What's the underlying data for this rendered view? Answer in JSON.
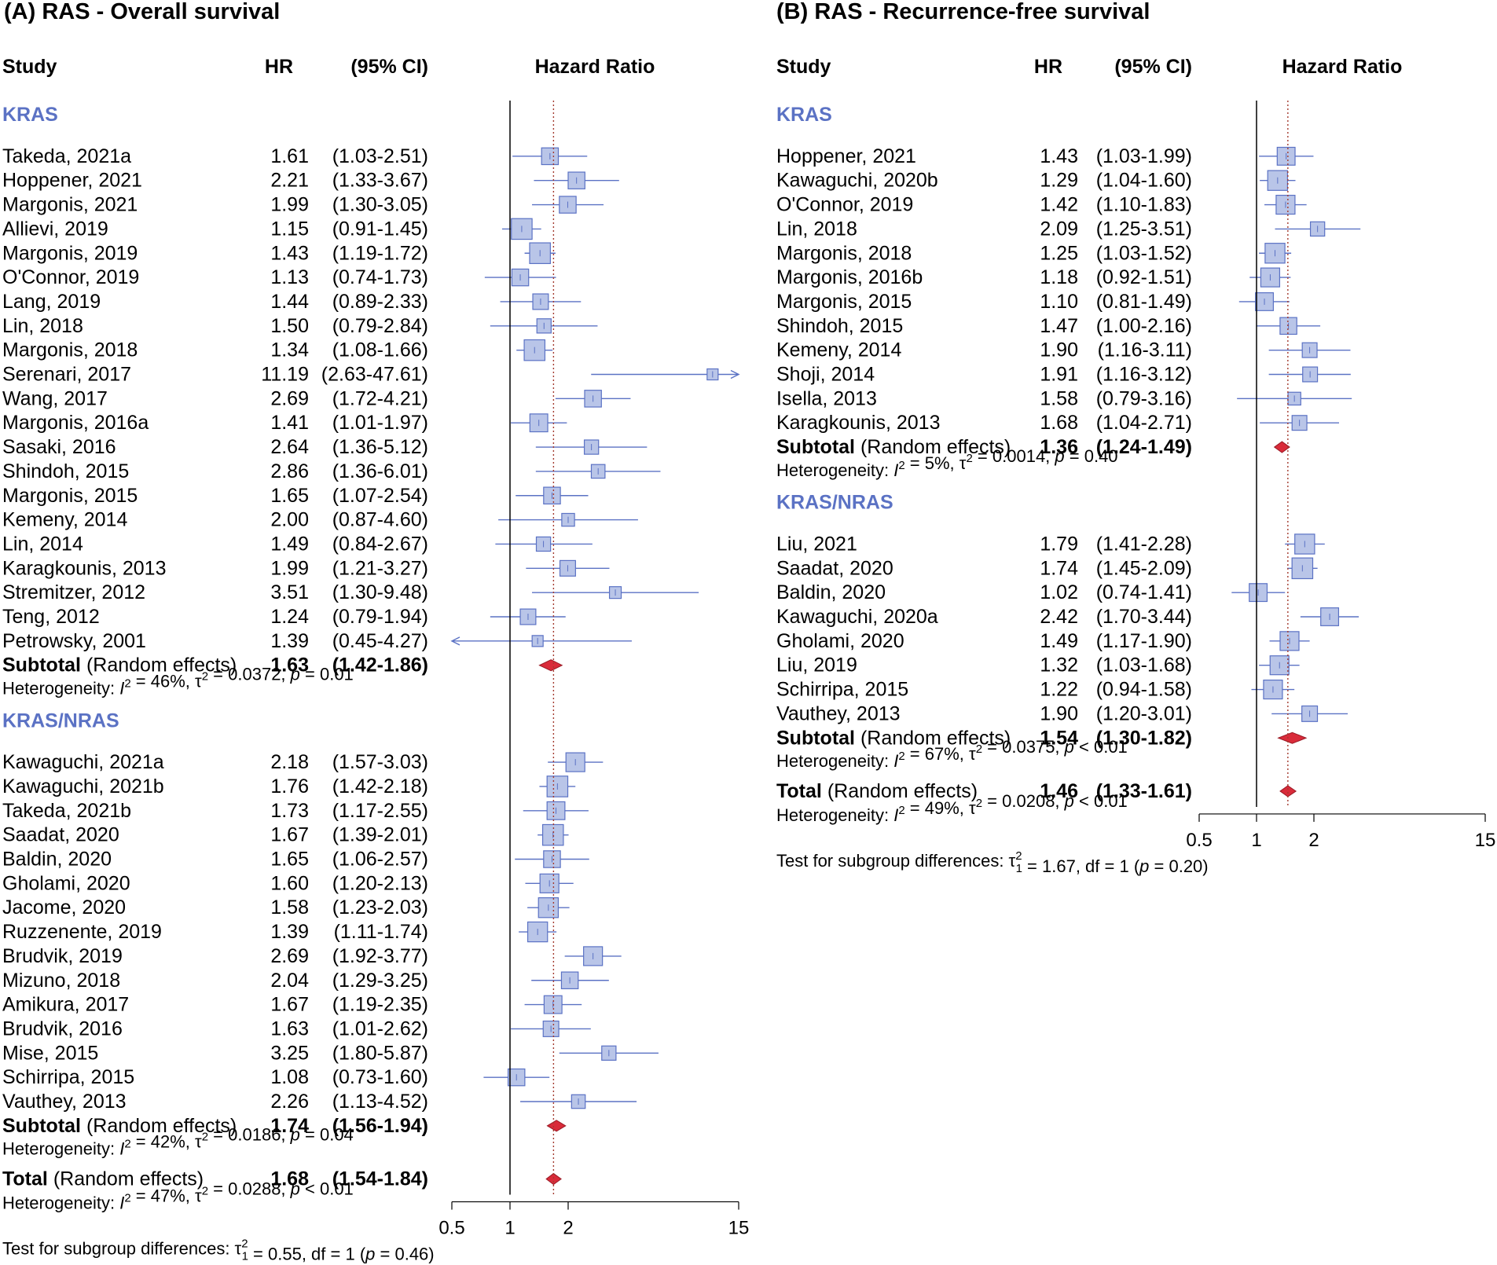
{
  "chart_data": [
    {
      "type": "forest",
      "title": "(A) RAS - Overall survival",
      "columns": {
        "study": "Study",
        "hr": "HR",
        "ci": "(95% CI)",
        "plot": "Hazard Ratio"
      },
      "x_scale": "log",
      "xlim": [
        0.5,
        15
      ],
      "ticks": [
        "0.5",
        "1",
        "2",
        "15"
      ],
      "tick_values": [
        0.5,
        1,
        2,
        15
      ],
      "pooled_line_value": 1.68,
      "groups": [
        {
          "name": "KRAS",
          "studies": [
            {
              "study": "Takeda, 2021a",
              "hr": "1.61",
              "ci": "(1.03-2.51)",
              "hr_value": 1.61,
              "lo": 1.03,
              "hi": 2.51,
              "weight": 3
            },
            {
              "study": "Hoppener, 2021",
              "hr": "2.21",
              "ci": "(1.33-3.67)",
              "hr_value": 2.21,
              "lo": 1.33,
              "hi": 3.67,
              "weight": 3
            },
            {
              "study": "Margonis, 2021",
              "hr": "1.99",
              "ci": "(1.30-3.05)",
              "hr_value": 1.99,
              "lo": 1.3,
              "hi": 3.05,
              "weight": 3
            },
            {
              "study": "Allievi, 2019",
              "hr": "1.15",
              "ci": "(0.91-1.45)",
              "hr_value": 1.15,
              "lo": 0.91,
              "hi": 1.45,
              "weight": 5
            },
            {
              "study": "Margonis, 2019",
              "hr": "1.43",
              "ci": "(1.19-1.72)",
              "hr_value": 1.43,
              "lo": 1.19,
              "hi": 1.72,
              "weight": 5
            },
            {
              "study": "O'Connor, 2019",
              "hr": "1.13",
              "ci": "(0.74-1.73)",
              "hr_value": 1.13,
              "lo": 0.74,
              "hi": 1.73,
              "weight": 3
            },
            {
              "study": "Lang, 2019",
              "hr": "1.44",
              "ci": "(0.89-2.33)",
              "hr_value": 1.44,
              "lo": 0.89,
              "hi": 2.33,
              "weight": 2.5
            },
            {
              "study": "Lin, 2018",
              "hr": "1.50",
              "ci": "(0.79-2.84)",
              "hr_value": 1.5,
              "lo": 0.79,
              "hi": 2.84,
              "weight": 2
            },
            {
              "study": "Margonis, 2018",
              "hr": "1.34",
              "ci": "(1.08-1.66)",
              "hr_value": 1.34,
              "lo": 1.08,
              "hi": 1.66,
              "weight": 5
            },
            {
              "study": "Serenari, 2017",
              "hr": "11.19",
              "ci": "(2.63-47.61)",
              "hr_value": 11.19,
              "lo": 2.63,
              "hi": 47.61,
              "weight": 1
            },
            {
              "study": "Wang, 2017",
              "hr": "2.69",
              "ci": "(1.72-4.21)",
              "hr_value": 2.69,
              "lo": 1.72,
              "hi": 4.21,
              "weight": 3
            },
            {
              "study": "Margonis, 2016a",
              "hr": "1.41",
              "ci": "(1.01-1.97)",
              "hr_value": 1.41,
              "lo": 1.01,
              "hi": 1.97,
              "weight": 3.5
            },
            {
              "study": "Sasaki, 2016",
              "hr": "2.64",
              "ci": "(1.36-5.12)",
              "hr_value": 2.64,
              "lo": 1.36,
              "hi": 5.12,
              "weight": 2
            },
            {
              "study": "Shindoh, 2015",
              "hr": "2.86",
              "ci": "(1.36-6.01)",
              "hr_value": 2.86,
              "lo": 1.36,
              "hi": 6.01,
              "weight": 1.8
            },
            {
              "study": "Margonis, 2015",
              "hr": "1.65",
              "ci": "(1.07-2.54)",
              "hr_value": 1.65,
              "lo": 1.07,
              "hi": 2.54,
              "weight": 3
            },
            {
              "study": "Kemeny, 2014",
              "hr": "2.00",
              "ci": "(0.87-4.60)",
              "hr_value": 2.0,
              "lo": 0.87,
              "hi": 4.6,
              "weight": 1.5
            },
            {
              "study": "Lin, 2014",
              "hr": "1.49",
              "ci": "(0.84-2.67)",
              "hr_value": 1.49,
              "lo": 0.84,
              "hi": 2.67,
              "weight": 2
            },
            {
              "study": "Karagkounis, 2013",
              "hr": "1.99",
              "ci": "(1.21-3.27)",
              "hr_value": 1.99,
              "lo": 1.21,
              "hi": 3.27,
              "weight": 2.5
            },
            {
              "study": "Stremitzer, 2012",
              "hr": "3.51",
              "ci": "(1.30-9.48)",
              "hr_value": 3.51,
              "lo": 1.3,
              "hi": 9.48,
              "weight": 1.2
            },
            {
              "study": "Teng, 2012",
              "hr": "1.24",
              "ci": "(0.79-1.94)",
              "hr_value": 1.24,
              "lo": 0.79,
              "hi": 1.94,
              "weight": 2.5
            },
            {
              "study": "Petrowsky, 2001",
              "hr": "1.39",
              "ci": "(0.45-4.27)",
              "hr_value": 1.39,
              "lo": 0.45,
              "hi": 4.27,
              "weight": 1
            }
          ],
          "subtotal": {
            "label": "Subtotal",
            "model": "(Random effects)",
            "hr": "1.63",
            "ci": "(1.42-1.86)",
            "hr_value": 1.63,
            "lo": 1.42,
            "hi": 1.86
          },
          "heterogeneity": {
            "prefix": "Heterogeneity: ",
            "i2": "I",
            "eq1": " = 46%, ",
            "tau": "τ",
            "eq2": " = 0.0372, ",
            "p": "p",
            "eq3": " = 0.01"
          }
        },
        {
          "name": "KRAS/NRAS",
          "studies": [
            {
              "study": "Kawaguchi, 2021a",
              "hr": "2.18",
              "ci": "(1.57-3.03)",
              "hr_value": 2.18,
              "lo": 1.57,
              "hi": 3.03,
              "weight": 4
            },
            {
              "study": "Kawaguchi, 2021b",
              "hr": "1.76",
              "ci": "(1.42-2.18)",
              "hr_value": 1.76,
              "lo": 1.42,
              "hi": 2.18,
              "weight": 5
            },
            {
              "study": "Takeda, 2021b",
              "hr": "1.73",
              "ci": "(1.17-2.55)",
              "hr_value": 1.73,
              "lo": 1.17,
              "hi": 2.55,
              "weight": 3.5
            },
            {
              "study": "Saadat, 2020",
              "hr": "1.67",
              "ci": "(1.39-2.01)",
              "hr_value": 1.67,
              "lo": 1.39,
              "hi": 2.01,
              "weight": 5
            },
            {
              "study": "Baldin, 2020",
              "hr": "1.65",
              "ci": "(1.06-2.57)",
              "hr_value": 1.65,
              "lo": 1.06,
              "hi": 2.57,
              "weight": 3
            },
            {
              "study": "Gholami, 2020",
              "hr": "1.60",
              "ci": "(1.20-2.13)",
              "hr_value": 1.6,
              "lo": 1.2,
              "hi": 2.13,
              "weight": 4
            },
            {
              "study": "Jacome, 2020",
              "hr": "1.58",
              "ci": "(1.23-2.03)",
              "hr_value": 1.58,
              "lo": 1.23,
              "hi": 2.03,
              "weight": 4.5
            },
            {
              "study": "Ruzzenente, 2019",
              "hr": "1.39",
              "ci": "(1.11-1.74)",
              "hr_value": 1.39,
              "lo": 1.11,
              "hi": 1.74,
              "weight": 4.5
            },
            {
              "study": "Brudvik, 2019",
              "hr": "2.69",
              "ci": "(1.92-3.77)",
              "hr_value": 2.69,
              "lo": 1.92,
              "hi": 3.77,
              "weight": 4
            },
            {
              "study": "Mizuno, 2018",
              "hr": "2.04",
              "ci": "(1.29-3.25)",
              "hr_value": 2.04,
              "lo": 1.29,
              "hi": 3.25,
              "weight": 3
            },
            {
              "study": "Amikura, 2017",
              "hr": "1.67",
              "ci": "(1.19-2.35)",
              "hr_value": 1.67,
              "lo": 1.19,
              "hi": 2.35,
              "weight": 3.5
            },
            {
              "study": "Brudvik, 2016",
              "hr": "1.63",
              "ci": "(1.01-2.62)",
              "hr_value": 1.63,
              "lo": 1.01,
              "hi": 2.62,
              "weight": 2.5
            },
            {
              "study": "Mise, 2015",
              "hr": "3.25",
              "ci": "(1.80-5.87)",
              "hr_value": 3.25,
              "lo": 1.8,
              "hi": 5.87,
              "weight": 2
            },
            {
              "study": "Schirripa, 2015",
              "hr": "1.08",
              "ci": "(0.73-1.60)",
              "hr_value": 1.08,
              "lo": 0.73,
              "hi": 1.6,
              "weight": 3
            },
            {
              "study": "Vauthey, 2013",
              "hr": "2.26",
              "ci": "(1.13-4.52)",
              "hr_value": 2.26,
              "lo": 1.13,
              "hi": 4.52,
              "weight": 1.8
            }
          ],
          "subtotal": {
            "label": "Subtotal",
            "model": "(Random effects)",
            "hr": "1.74",
            "ci": "(1.56-1.94)",
            "hr_value": 1.74,
            "lo": 1.56,
            "hi": 1.94
          },
          "heterogeneity": {
            "prefix": "Heterogeneity: ",
            "i2": "I",
            "eq1": " = 42%, ",
            "tau": "τ",
            "eq2": " = 0.0186, ",
            "p": "p",
            "eq3": " = 0.04"
          }
        }
      ],
      "total": {
        "label": "Total",
        "model": "(Random effects)",
        "hr": "1.68",
        "ci": "(1.54-1.84)",
        "hr_value": 1.68,
        "lo": 1.54,
        "hi": 1.84
      },
      "total_heterogeneity": {
        "prefix": "Heterogeneity: ",
        "i2": "I",
        "eq1": " = 47%, ",
        "tau": "τ",
        "eq2": " = 0.0288, ",
        "p": "p",
        "eq3": " < 0.01"
      },
      "subgroup_test": {
        "prefix": "Test for subgroup differences: ",
        "tau": "τ",
        "eq1": " = 0.55, df = 1 (",
        "p": "p",
        "eq2": " = 0.46)"
      }
    },
    {
      "type": "forest",
      "title": "(B) RAS - Recurrence-free survival",
      "columns": {
        "study": "Study",
        "hr": "HR",
        "ci": "(95% CI)",
        "plot": "Hazard Ratio"
      },
      "x_scale": "log",
      "xlim": [
        0.5,
        15
      ],
      "ticks": [
        "0.5",
        "1",
        "2",
        "15"
      ],
      "tick_values": [
        0.5,
        1,
        2,
        15
      ],
      "pooled_line_value": 1.46,
      "groups": [
        {
          "name": "KRAS",
          "studies": [
            {
              "study": "Hoppener, 2021",
              "hr": "1.43",
              "ci": "(1.03-1.99)",
              "hr_value": 1.43,
              "lo": 1.03,
              "hi": 1.99,
              "weight": 3.5
            },
            {
              "study": "Kawaguchi, 2020b",
              "hr": "1.29",
              "ci": "(1.04-1.60)",
              "hr_value": 1.29,
              "lo": 1.04,
              "hi": 1.6,
              "weight": 4.5
            },
            {
              "study": "O'Connor, 2019",
              "hr": "1.42",
              "ci": "(1.10-1.83)",
              "hr_value": 1.42,
              "lo": 1.1,
              "hi": 1.83,
              "weight": 4
            },
            {
              "study": "Lin, 2018",
              "hr": "2.09",
              "ci": "(1.25-3.51)",
              "hr_value": 2.09,
              "lo": 1.25,
              "hi": 3.51,
              "weight": 2
            },
            {
              "study": "Margonis, 2018",
              "hr": "1.25",
              "ci": "(1.03-1.52)",
              "hr_value": 1.25,
              "lo": 1.03,
              "hi": 1.52,
              "weight": 4.5
            },
            {
              "study": "Margonis, 2016b",
              "hr": "1.18",
              "ci": "(0.92-1.51)",
              "hr_value": 1.18,
              "lo": 0.92,
              "hi": 1.51,
              "weight": 4
            },
            {
              "study": "Margonis, 2015",
              "hr": "1.10",
              "ci": "(0.81-1.49)",
              "hr_value": 1.1,
              "lo": 0.81,
              "hi": 1.49,
              "weight": 3.5
            },
            {
              "study": "Shindoh, 2015",
              "hr": "1.47",
              "ci": "(1.00-2.16)",
              "hr_value": 1.47,
              "lo": 1.0,
              "hi": 2.16,
              "weight": 3
            },
            {
              "study": "Kemeny, 2014",
              "hr": "1.90",
              "ci": "(1.16-3.11)",
              "hr_value": 1.9,
              "lo": 1.16,
              "hi": 3.11,
              "weight": 2.2
            },
            {
              "study": "Shoji, 2014",
              "hr": "1.91",
              "ci": "(1.16-3.12)",
              "hr_value": 1.91,
              "lo": 1.16,
              "hi": 3.12,
              "weight": 2.2
            },
            {
              "study": "Isella, 2013",
              "hr": "1.58",
              "ci": "(0.79-3.16)",
              "hr_value": 1.58,
              "lo": 0.79,
              "hi": 3.16,
              "weight": 1.5
            },
            {
              "study": "Karagkounis, 2013",
              "hr": "1.68",
              "ci": "(1.04-2.71)",
              "hr_value": 1.68,
              "lo": 1.04,
              "hi": 2.71,
              "weight": 2.2
            }
          ],
          "subtotal": {
            "label": "Subtotal",
            "model": "(Random effects)",
            "hr": "1.36",
            "ci": "(1.24-1.49)",
            "hr_value": 1.36,
            "lo": 1.24,
            "hi": 1.49
          },
          "heterogeneity": {
            "prefix": "Heterogeneity: ",
            "i2": "I",
            "eq1": " = 5%, ",
            "tau": "τ",
            "eq2": " = 0.0014, ",
            "p": "p",
            "eq3": " = 0.40"
          }
        },
        {
          "name": "KRAS/NRAS",
          "studies": [
            {
              "study": "Liu, 2021",
              "hr": "1.79",
              "ci": "(1.41-2.28)",
              "hr_value": 1.79,
              "lo": 1.41,
              "hi": 2.28,
              "weight": 4.5
            },
            {
              "study": "Saadat, 2020",
              "hr": "1.74",
              "ci": "(1.45-2.09)",
              "hr_value": 1.74,
              "lo": 1.45,
              "hi": 2.09,
              "weight": 5
            },
            {
              "study": "Baldin, 2020",
              "hr": "1.02",
              "ci": "(0.74-1.41)",
              "hr_value": 1.02,
              "lo": 0.74,
              "hi": 1.41,
              "weight": 3.5
            },
            {
              "study": "Kawaguchi, 2020a",
              "hr": "2.42",
              "ci": "(1.70-3.44)",
              "hr_value": 2.42,
              "lo": 1.7,
              "hi": 3.44,
              "weight": 3.5
            },
            {
              "study": "Gholami, 2020",
              "hr": "1.49",
              "ci": "(1.17-1.90)",
              "hr_value": 1.49,
              "lo": 1.17,
              "hi": 1.9,
              "weight": 4
            },
            {
              "study": "Liu, 2019",
              "hr": "1.32",
              "ci": "(1.03-1.68)",
              "hr_value": 1.32,
              "lo": 1.03,
              "hi": 1.68,
              "weight": 4
            },
            {
              "study": "Schirripa, 2015",
              "hr": "1.22",
              "ci": "(0.94-1.58)",
              "hr_value": 1.22,
              "lo": 0.94,
              "hi": 1.58,
              "weight": 4
            },
            {
              "study": "Vauthey, 2013",
              "hr": "1.90",
              "ci": "(1.20-3.01)",
              "hr_value": 1.9,
              "lo": 1.2,
              "hi": 3.01,
              "weight": 2.5
            }
          ],
          "subtotal": {
            "label": "Subtotal",
            "model": "(Random effects)",
            "hr": "1.54",
            "ci": "(1.30-1.82)",
            "hr_value": 1.54,
            "lo": 1.3,
            "hi": 1.82
          },
          "heterogeneity": {
            "prefix": "Heterogeneity: ",
            "i2": "I",
            "eq1": " = 67%, ",
            "tau": "τ",
            "eq2": " = 0.0375, ",
            "p": "p",
            "eq3": " < 0.01"
          }
        }
      ],
      "total": {
        "label": "Total",
        "model": "(Random effects)",
        "hr": "1.46",
        "ci": "(1.33-1.61)",
        "hr_value": 1.46,
        "lo": 1.33,
        "hi": 1.61
      },
      "total_heterogeneity": {
        "prefix": "Heterogeneity: ",
        "i2": "I",
        "eq1": " = 49%, ",
        "tau": "τ",
        "eq2": " = 0.0208, ",
        "p": "p",
        "eq3": " < 0.01"
      },
      "subgroup_test": {
        "prefix": "Test for subgroup differences: ",
        "tau": "τ",
        "eq1": " = 1.67, df = 1 (",
        "p": "p",
        "eq2": " = 0.20)"
      }
    }
  ],
  "colors": {
    "group_label": "#5b72c4",
    "box_fill": "#b9c5e8",
    "box_stroke": "#5b72c4",
    "ci_line": "#5b72c4",
    "diamond_fill": "#d92b3a",
    "diamond_stroke": "#9a1a25",
    "pooled_line": "#a33a2e"
  }
}
